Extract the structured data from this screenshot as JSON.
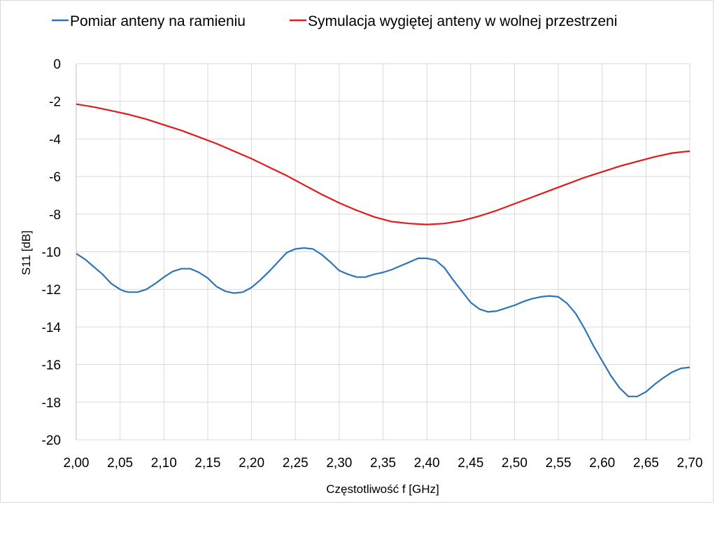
{
  "chart_data": {
    "type": "line",
    "title": "",
    "xlabel": "Częstotliwość f [GHz]",
    "ylabel": "S11 [dB]",
    "xlim": [
      2.0,
      2.7
    ],
    "ylim": [
      -20,
      0
    ],
    "x_ticks": [
      "2,00",
      "2,05",
      "2,10",
      "2,15",
      "2,20",
      "2,25",
      "2,30",
      "2,35",
      "2,40",
      "2,45",
      "2,50",
      "2,55",
      "2,60",
      "2,65",
      "2,70"
    ],
    "y_ticks": [
      "0",
      "-2",
      "-4",
      "-6",
      "-8",
      "-10",
      "-12",
      "-14",
      "-16",
      "-18",
      "-20"
    ],
    "grid": true,
    "legend_position": "top",
    "series": [
      {
        "name": "Pomiar anteny na ramieniu",
        "color": "#2e75b6",
        "points": [
          [
            2.0,
            -10.1
          ],
          [
            2.01,
            -10.4
          ],
          [
            2.02,
            -10.8
          ],
          [
            2.03,
            -11.2
          ],
          [
            2.04,
            -11.7
          ],
          [
            2.05,
            -12.0
          ],
          [
            2.055,
            -12.1
          ],
          [
            2.06,
            -12.15
          ],
          [
            2.07,
            -12.15
          ],
          [
            2.08,
            -12.0
          ],
          [
            2.09,
            -11.7
          ],
          [
            2.1,
            -11.35
          ],
          [
            2.11,
            -11.05
          ],
          [
            2.12,
            -10.9
          ],
          [
            2.13,
            -10.9
          ],
          [
            2.14,
            -11.1
          ],
          [
            2.15,
            -11.4
          ],
          [
            2.16,
            -11.85
          ],
          [
            2.17,
            -12.1
          ],
          [
            2.18,
            -12.2
          ],
          [
            2.19,
            -12.15
          ],
          [
            2.2,
            -11.9
          ],
          [
            2.21,
            -11.5
          ],
          [
            2.22,
            -11.05
          ],
          [
            2.23,
            -10.55
          ],
          [
            2.24,
            -10.05
          ],
          [
            2.25,
            -9.85
          ],
          [
            2.26,
            -9.8
          ],
          [
            2.27,
            -9.85
          ],
          [
            2.28,
            -10.15
          ],
          [
            2.29,
            -10.55
          ],
          [
            2.3,
            -11.0
          ],
          [
            2.31,
            -11.2
          ],
          [
            2.32,
            -11.35
          ],
          [
            2.33,
            -11.35
          ],
          [
            2.34,
            -11.2
          ],
          [
            2.35,
            -11.1
          ],
          [
            2.36,
            -10.95
          ],
          [
            2.37,
            -10.75
          ],
          [
            2.38,
            -10.55
          ],
          [
            2.39,
            -10.35
          ],
          [
            2.4,
            -10.35
          ],
          [
            2.41,
            -10.45
          ],
          [
            2.42,
            -10.85
          ],
          [
            2.43,
            -11.5
          ],
          [
            2.44,
            -12.1
          ],
          [
            2.45,
            -12.7
          ],
          [
            2.46,
            -13.05
          ],
          [
            2.47,
            -13.2
          ],
          [
            2.48,
            -13.15
          ],
          [
            2.49,
            -13.0
          ],
          [
            2.5,
            -12.85
          ],
          [
            2.51,
            -12.65
          ],
          [
            2.52,
            -12.5
          ],
          [
            2.53,
            -12.4
          ],
          [
            2.54,
            -12.35
          ],
          [
            2.55,
            -12.4
          ],
          [
            2.56,
            -12.75
          ],
          [
            2.57,
            -13.3
          ],
          [
            2.58,
            -14.1
          ],
          [
            2.59,
            -15.0
          ],
          [
            2.6,
            -15.8
          ],
          [
            2.61,
            -16.6
          ],
          [
            2.62,
            -17.25
          ],
          [
            2.63,
            -17.7
          ],
          [
            2.64,
            -17.7
          ],
          [
            2.65,
            -17.45
          ],
          [
            2.66,
            -17.05
          ],
          [
            2.67,
            -16.7
          ],
          [
            2.68,
            -16.4
          ],
          [
            2.69,
            -16.2
          ],
          [
            2.7,
            -16.15
          ]
        ]
      },
      {
        "name": "Symulacja wygiętej anteny w wolnej przestrzeni",
        "color": "#e31a1c",
        "points": [
          [
            2.0,
            -2.15
          ],
          [
            2.02,
            -2.3
          ],
          [
            2.04,
            -2.5
          ],
          [
            2.06,
            -2.7
          ],
          [
            2.08,
            -2.95
          ],
          [
            2.1,
            -3.25
          ],
          [
            2.12,
            -3.55
          ],
          [
            2.14,
            -3.9
          ],
          [
            2.16,
            -4.25
          ],
          [
            2.18,
            -4.65
          ],
          [
            2.2,
            -5.05
          ],
          [
            2.22,
            -5.5
          ],
          [
            2.24,
            -5.95
          ],
          [
            2.26,
            -6.45
          ],
          [
            2.28,
            -6.95
          ],
          [
            2.3,
            -7.4
          ],
          [
            2.32,
            -7.8
          ],
          [
            2.34,
            -8.15
          ],
          [
            2.36,
            -8.4
          ],
          [
            2.38,
            -8.5
          ],
          [
            2.4,
            -8.55
          ],
          [
            2.42,
            -8.5
          ],
          [
            2.44,
            -8.35
          ],
          [
            2.46,
            -8.1
          ],
          [
            2.48,
            -7.8
          ],
          [
            2.5,
            -7.45
          ],
          [
            2.52,
            -7.1
          ],
          [
            2.54,
            -6.75
          ],
          [
            2.56,
            -6.4
          ],
          [
            2.58,
            -6.05
          ],
          [
            2.6,
            -5.75
          ],
          [
            2.62,
            -5.45
          ],
          [
            2.64,
            -5.2
          ],
          [
            2.66,
            -4.95
          ],
          [
            2.68,
            -4.75
          ],
          [
            2.7,
            -4.65
          ]
        ]
      }
    ]
  }
}
